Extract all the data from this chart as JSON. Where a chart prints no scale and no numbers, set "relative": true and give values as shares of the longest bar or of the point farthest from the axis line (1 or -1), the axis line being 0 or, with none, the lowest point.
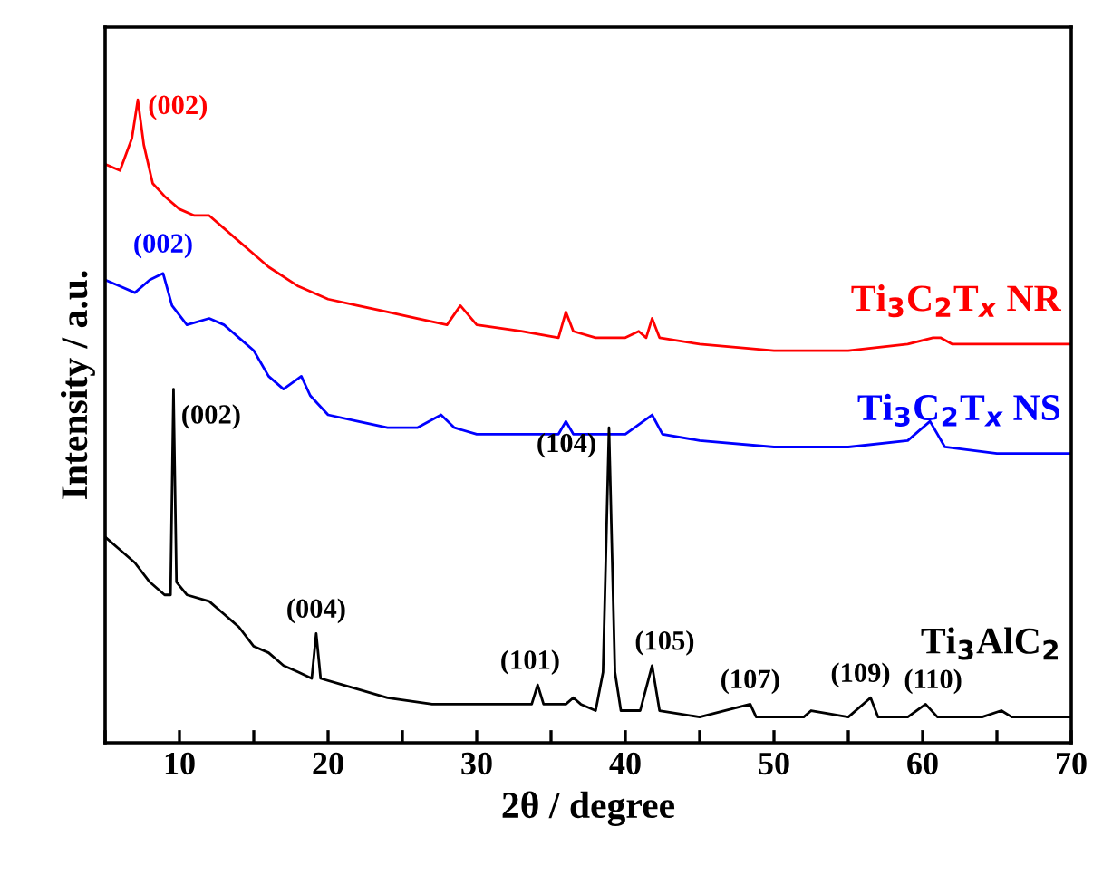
{
  "chart_data": {
    "type": "line",
    "relative": true,
    "xlabel": "2θ / degree",
    "ylabel": "Intensity / a.u.",
    "xlim": [
      5,
      70
    ],
    "xticks": [
      {
        "value": 5,
        "label": null
      },
      10,
      {
        "value": 15,
        "label": null
      },
      20,
      {
        "value": 25,
        "label": null
      },
      30,
      {
        "value": 35,
        "label": null
      },
      40,
      {
        "value": 45,
        "label": null
      },
      50,
      {
        "value": 55,
        "label": null
      },
      60,
      {
        "value": 65,
        "label": null
      },
      70
    ],
    "legend": false,
    "grid": false,
    "marker": "none",
    "line_style": "solid",
    "series": [
      {
        "name": "Ti$_{3}$C$_{2}$T$_{x}$ NR",
        "color": "#ff0000",
        "x": [
          5,
          6,
          6.8,
          7.2,
          7.6,
          8.2,
          9,
          10,
          11,
          12,
          13,
          14,
          15,
          16,
          18,
          20,
          22,
          24,
          26,
          28,
          28.9,
          30,
          33,
          35.5,
          36,
          36.5,
          38,
          40,
          40.9,
          41.4,
          41.8,
          42.3,
          45,
          50,
          55,
          59,
          60.7,
          61.2,
          62,
          65,
          70
        ],
        "values": [
          0.9,
          0.89,
          0.94,
          1.0,
          0.93,
          0.87,
          0.85,
          0.83,
          0.82,
          0.82,
          0.8,
          0.78,
          0.76,
          0.74,
          0.71,
          0.69,
          0.68,
          0.67,
          0.66,
          0.65,
          0.68,
          0.65,
          0.64,
          0.63,
          0.67,
          0.64,
          0.63,
          0.63,
          0.64,
          0.63,
          0.66,
          0.63,
          0.62,
          0.61,
          0.61,
          0.62,
          0.63,
          0.63,
          0.62,
          0.62,
          0.62
        ]
      },
      {
        "name": "Ti$_{3}$C$_{2}$T$_{x}$ NS",
        "color": "#0000ff",
        "x": [
          5,
          6,
          7,
          8,
          8.9,
          9.5,
          10.5,
          12,
          13,
          14,
          15,
          16,
          17,
          18.2,
          18.8,
          20,
          22,
          24,
          26,
          27.6,
          28.5,
          30,
          33,
          35.5,
          36,
          36.5,
          38,
          40,
          41.8,
          42.5,
          45,
          50,
          55,
          59,
          60.5,
          61.5,
          65,
          70
        ],
        "values": [
          0.72,
          0.71,
          0.7,
          0.72,
          0.73,
          0.68,
          0.65,
          0.66,
          0.65,
          0.63,
          0.61,
          0.57,
          0.55,
          0.57,
          0.54,
          0.51,
          0.5,
          0.49,
          0.49,
          0.51,
          0.49,
          0.48,
          0.48,
          0.48,
          0.5,
          0.48,
          0.48,
          0.48,
          0.51,
          0.48,
          0.47,
          0.46,
          0.46,
          0.47,
          0.5,
          0.46,
          0.45,
          0.45
        ]
      },
      {
        "name": "Ti$_{3}$AlC$_{2}$",
        "color": "#000000",
        "x": [
          5,
          6,
          7,
          8,
          9,
          9.4,
          9.6,
          9.8,
          10.5,
          12,
          13,
          14,
          15,
          16,
          17,
          18,
          18.9,
          19.2,
          19.5,
          21,
          24,
          27,
          30,
          33,
          33.7,
          34.1,
          34.5,
          36,
          36.5,
          37,
          38,
          38.5,
          38.9,
          39.3,
          39.7,
          41,
          41.8,
          42.3,
          45,
          48.4,
          48.8,
          52,
          52.5,
          55,
          56.5,
          57,
          59,
          60.2,
          61,
          64,
          65.3,
          66,
          70
        ],
        "values": [
          0.32,
          0.3,
          0.28,
          0.25,
          0.23,
          0.23,
          0.55,
          0.25,
          0.23,
          0.22,
          0.2,
          0.18,
          0.15,
          0.14,
          0.12,
          0.11,
          0.1,
          0.17,
          0.1,
          0.09,
          0.07,
          0.06,
          0.06,
          0.06,
          0.06,
          0.09,
          0.06,
          0.06,
          0.07,
          0.06,
          0.05,
          0.11,
          0.49,
          0.11,
          0.05,
          0.05,
          0.12,
          0.05,
          0.04,
          0.06,
          0.04,
          0.04,
          0.05,
          0.04,
          0.07,
          0.04,
          0.04,
          0.06,
          0.04,
          0.04,
          0.05,
          0.04,
          0.04
        ]
      }
    ],
    "annotations": [
      {
        "text": "(002)",
        "x": 7.2,
        "y": 1.0
      },
      {
        "text": "(002)",
        "x": 8.9,
        "y": 0.73
      },
      {
        "text": "(002)",
        "x": 9.6,
        "y": 0.55
      },
      {
        "text": "(004)",
        "x": 19.2,
        "y": 0.17
      },
      {
        "text": "(101)",
        "x": 34.1,
        "y": 0.09
      },
      {
        "text": "(104)",
        "x": 38.9,
        "y": 0.49
      },
      {
        "text": "(105)",
        "x": 41.8,
        "y": 0.12
      },
      {
        "text": "(107)",
        "x": 48.4,
        "y": 0.06
      },
      {
        "text": "(109)",
        "x": 56.5,
        "y": 0.07
      },
      {
        "text": "(110)",
        "x": 60.2,
        "y": 0.06
      }
    ]
  }
}
